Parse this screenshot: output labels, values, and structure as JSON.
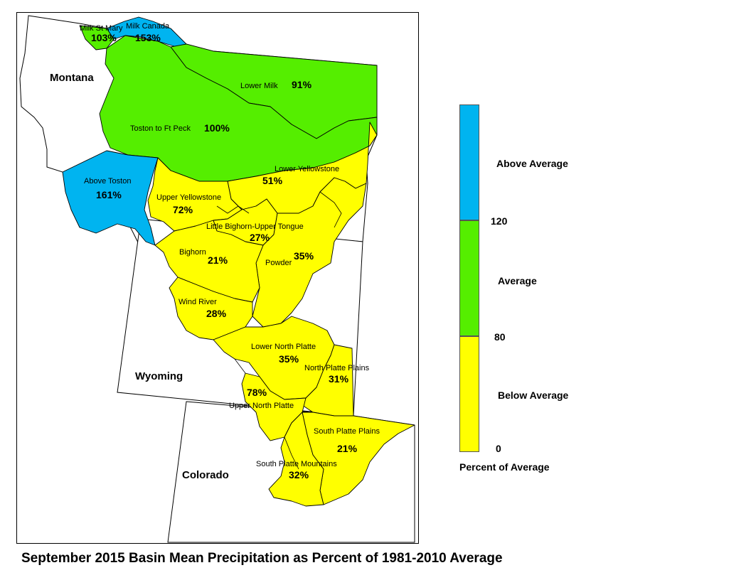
{
  "title": "September 2015 Basin Mean Precipitation as Percent of 1981-2010 Average",
  "colors": {
    "above": "#00B4F0",
    "average": "#55EE00",
    "below": "#FFFF00",
    "outline": "#000000",
    "background": "#FFFFFF"
  },
  "states": [
    {
      "id": "montana",
      "label": "Montana"
    },
    {
      "id": "wyoming",
      "label": "Wyoming"
    },
    {
      "id": "colorado",
      "label": "Colorado"
    }
  ],
  "basins": [
    {
      "id": "milk-st-mary",
      "name": "Milk St Mary",
      "percent": "103%",
      "value": 103,
      "category": "average"
    },
    {
      "id": "milk-canada",
      "name": "Milk Canada",
      "percent": "153%",
      "value": 153,
      "category": "above"
    },
    {
      "id": "lower-milk",
      "name": "Lower Milk",
      "percent": "91%",
      "value": 91,
      "category": "average"
    },
    {
      "id": "toston-ft-peck",
      "name": "Toston to Ft Peck",
      "percent": "100%",
      "value": 100,
      "category": "average"
    },
    {
      "id": "above-toston",
      "name": "Above Toston",
      "percent": "161%",
      "value": 161,
      "category": "above"
    },
    {
      "id": "lower-yellowstone",
      "name": "Lower Yellowstone",
      "percent": "51%",
      "value": 51,
      "category": "below"
    },
    {
      "id": "upper-yellowstone",
      "name": "Upper Yellowstone",
      "percent": "72%",
      "value": 72,
      "category": "below"
    },
    {
      "id": "little-bighorn",
      "name": "Little Bighorn-Upper Tongue",
      "percent": "27%",
      "value": 27,
      "category": "below"
    },
    {
      "id": "bighorn",
      "name": "Bighorn",
      "percent": "21%",
      "value": 21,
      "category": "below"
    },
    {
      "id": "powder",
      "name": "Powder",
      "percent": "35%",
      "value": 35,
      "category": "below"
    },
    {
      "id": "wind-river",
      "name": "Wind River",
      "percent": "28%",
      "value": 28,
      "category": "below"
    },
    {
      "id": "lower-north-platte",
      "name": "Lower North Platte",
      "percent": "35%",
      "value": 35,
      "category": "below"
    },
    {
      "id": "north-platte-plains",
      "name": "North Platte Plains",
      "percent": "31%",
      "value": 31,
      "category": "below"
    },
    {
      "id": "upper-north-platte",
      "name": "Upper North Platte",
      "percent": "78%",
      "value": 78,
      "category": "below"
    },
    {
      "id": "south-platte-plains",
      "name": "South Platte Plains",
      "percent": "21%",
      "value": 21,
      "category": "below"
    },
    {
      "id": "south-platte-mountains",
      "name": "South Platte Mountains",
      "percent": "32%",
      "value": 32,
      "category": "below"
    }
  ],
  "legend": {
    "categories": [
      {
        "id": "above",
        "label": "Above Average",
        "color": "#00B4F0"
      },
      {
        "id": "average",
        "label": "Average",
        "color": "#55EE00"
      },
      {
        "id": "below",
        "label": "Below Average",
        "color": "#FFFF00"
      }
    ],
    "breaks": [
      "120",
      "80",
      "0"
    ],
    "caption": "Percent of Average"
  }
}
